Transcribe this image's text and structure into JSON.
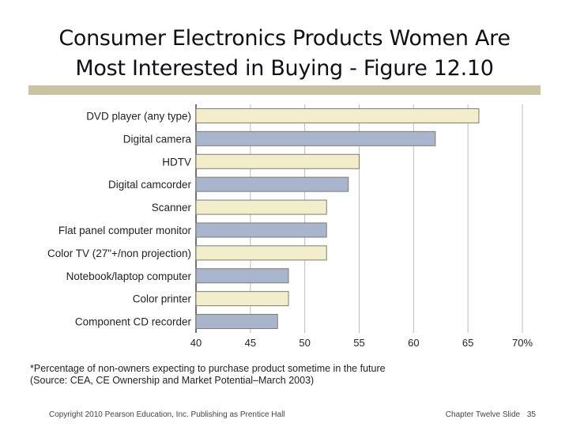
{
  "slide": {
    "title_line1": "Consumer Electronics Products Women Are",
    "title_line2": "Most Interested in Buying -  Figure 12.10",
    "note_line1": "*Percentage of non-owners expecting to purchase product sometime in the future",
    "note_line2": "(Source: CEA, CE Ownership and Market Potential–March 2003)",
    "footer_left": "Copyright 2010 Pearson Education, Inc. Publishing as Prentice Hall",
    "footer_right": "Chapter Twelve Slide",
    "page_number": "35"
  },
  "colors": {
    "bar_odd": "#f2eecb",
    "bar_even": "#a9b5cd",
    "bar_border": "#7c7c6e",
    "grid": "#bdbdbd",
    "axis": "#444444"
  },
  "chart_data": {
    "type": "bar",
    "orientation": "horizontal",
    "title": "",
    "xlabel": "",
    "ylabel": "",
    "categories": [
      "DVD player (any type)",
      "Digital camera",
      "HDTV",
      "Digital camcorder",
      "Scanner",
      "Flat panel computer monitor",
      "Color TV (27\"+/non projection)",
      "Notebook/laptop computer",
      "Color printer",
      "Component CD recorder"
    ],
    "values": [
      66,
      62,
      55,
      54,
      52,
      52,
      52,
      48.5,
      48.5,
      47.5
    ],
    "xlim": [
      40,
      70
    ],
    "xticks": [
      "40",
      "45",
      "50",
      "55",
      "60",
      "65",
      "70%"
    ],
    "grid": true
  }
}
